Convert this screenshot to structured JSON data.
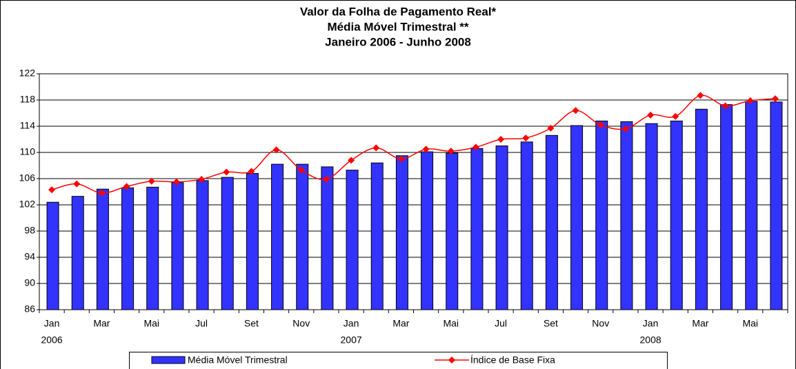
{
  "chart_data": {
    "type": "bar-line",
    "title": [
      "Valor da Folha de Pagamento Real*",
      "Média Móvel Trimestral **",
      "Janeiro 2006 - Junho 2008"
    ],
    "categories": [
      "Jan",
      null,
      "Mar",
      null,
      "Mai",
      null,
      "Jul",
      null,
      "Set",
      null,
      "Nov",
      null,
      "Jan",
      null,
      "Mar",
      null,
      "Mai",
      null,
      "Jul",
      null,
      "Set",
      null,
      "Nov",
      null,
      "Jan",
      null,
      "Mar",
      null,
      "Mai",
      null
    ],
    "years": [
      "2006",
      null,
      null,
      null,
      null,
      null,
      null,
      null,
      null,
      null,
      null,
      null,
      "2007",
      null,
      null,
      null,
      null,
      null,
      null,
      null,
      null,
      null,
      null,
      null,
      "2008",
      null,
      null,
      null,
      null,
      null
    ],
    "series": [
      {
        "name": "Média Móvel Trimestral",
        "kind": "bar",
        "color": "#3333ff",
        "values": [
          102.4,
          103.3,
          104.4,
          104.6,
          104.7,
          105.4,
          105.7,
          106.2,
          106.8,
          108.2,
          108.2,
          107.8,
          107.3,
          108.4,
          109.5,
          110.1,
          109.9,
          110.6,
          111.0,
          111.6,
          112.6,
          114.1,
          114.8,
          114.7,
          114.4,
          114.8,
          116.6,
          117.3,
          117.8,
          117.7
        ]
      },
      {
        "name": "Índice de Base Fixa",
        "kind": "line",
        "color": "#ff0000",
        "values": [
          104.3,
          105.2,
          103.8,
          104.8,
          105.6,
          105.5,
          105.9,
          107.0,
          107.1,
          110.4,
          107.3,
          105.9,
          108.8,
          110.7,
          109.0,
          110.5,
          110.2,
          110.8,
          112.0,
          112.2,
          113.7,
          116.4,
          114.2,
          113.6,
          115.7,
          115.5,
          118.7,
          117.1,
          117.9,
          118.2
        ]
      }
    ],
    "ylim": [
      86,
      122
    ],
    "yticks": [
      86,
      90,
      94,
      98,
      102,
      106,
      110,
      114,
      118,
      122
    ],
    "grid": true
  }
}
